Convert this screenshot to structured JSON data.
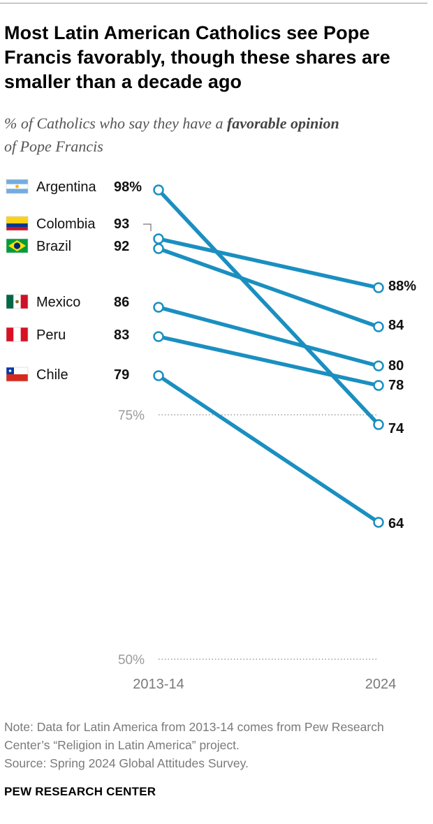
{
  "header": {
    "title": "Most Latin American Catholics see Pope Francis favorably, though these shares are smaller than a decade ago",
    "subtitle_pre": "% of Catholics who say they have a ",
    "subtitle_em": "favorable opinion",
    "subtitle_post": "of Pope Francis"
  },
  "chart_data": {
    "type": "line",
    "subtype": "slope",
    "x": [
      "2013-14",
      "2024"
    ],
    "ylim": [
      50,
      100
    ],
    "reference_lines": [
      {
        "value": 75,
        "label": "75%"
      },
      {
        "value": 50,
        "label": "50%"
      }
    ],
    "line_color": "#1a8fc0",
    "series": [
      {
        "name": "Argentina",
        "values": [
          98,
          74
        ],
        "start_label": "98%",
        "end_label": "74",
        "flag": "argentina"
      },
      {
        "name": "Colombia",
        "values": [
          93,
          88
        ],
        "start_label": "93",
        "end_label": "88%",
        "flag": "colombia"
      },
      {
        "name": "Brazil",
        "values": [
          92,
          84
        ],
        "start_label": "92",
        "end_label": "84",
        "flag": "brazil"
      },
      {
        "name": "Mexico",
        "values": [
          86,
          80
        ],
        "start_label": "86",
        "end_label": "80",
        "flag": "mexico"
      },
      {
        "name": "Peru",
        "values": [
          83,
          78
        ],
        "start_label": "83",
        "end_label": "78",
        "flag": "peru"
      },
      {
        "name": "Chile",
        "values": [
          79,
          64
        ],
        "start_label": "79",
        "end_label": "64",
        "flag": "chile"
      }
    ]
  },
  "footer": {
    "note": "Note: Data for Latin America from 2013-14 comes from Pew Research Center’s “Religion in Latin America” project.",
    "source": "Source: Spring 2024 Global Attitudes Survey.",
    "org": "PEW RESEARCH CENTER"
  }
}
